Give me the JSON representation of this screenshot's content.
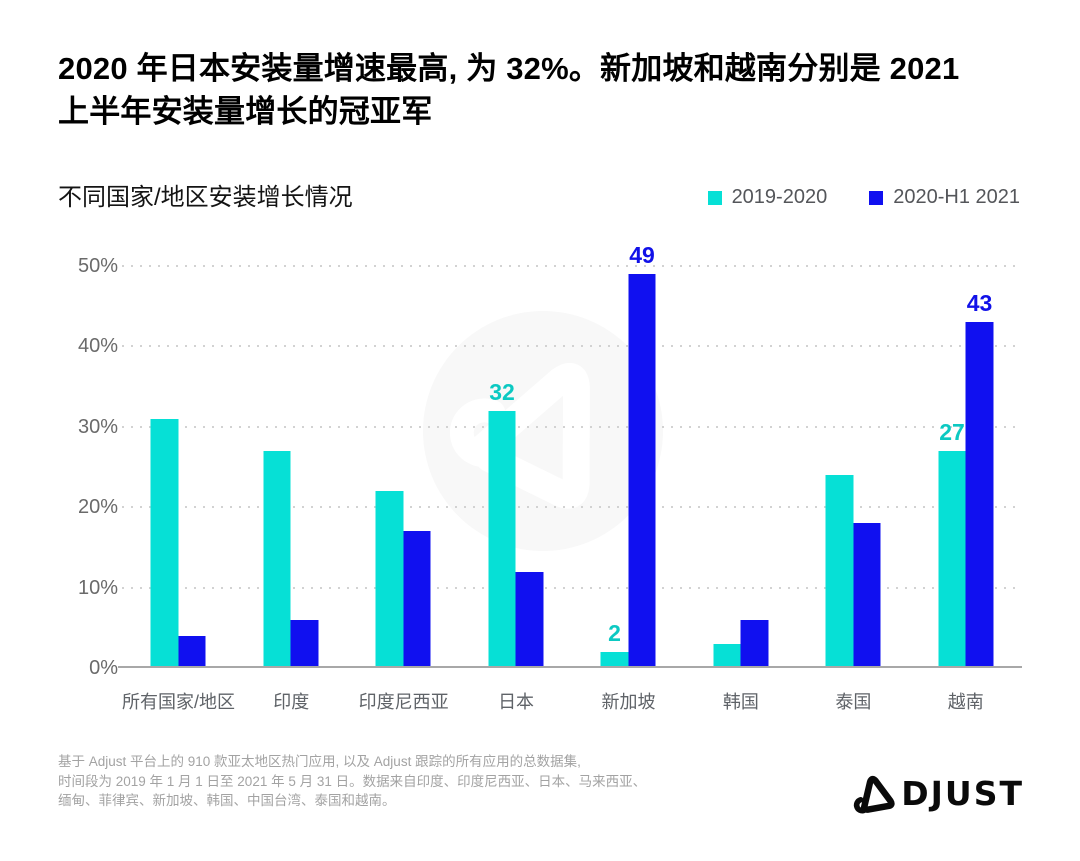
{
  "header": {
    "title_lines": [
      "2020 年日本安装量增速最高, 为 32%。新加坡和越南分别是 2021",
      "上半年安装量增长的冠亚军"
    ]
  },
  "chart": {
    "subtitle": "不同国家/地区安装增长情况",
    "legend": [
      {
        "label": "2019-2020",
        "color": "#06e0d6"
      },
      {
        "label": "2020-H1 2021",
        "color": "#1010f0"
      }
    ]
  },
  "chart_data": {
    "type": "bar",
    "title": "不同国家/地区安装增长情况",
    "categories": [
      "所有国家/地区",
      "印度",
      "印度尼西亚",
      "日本",
      "新加坡",
      "韩国",
      "泰国",
      "越南"
    ],
    "series": [
      {
        "name": "2019-2020",
        "color": "#06e0d6",
        "label_color": "#0cc9c2",
        "values": [
          31,
          27,
          22,
          32,
          2,
          3,
          24,
          27
        ],
        "shown_labels": [
          null,
          null,
          null,
          "32",
          "2",
          null,
          null,
          "27"
        ]
      },
      {
        "name": "2020-H1 2021",
        "color": "#1010f0",
        "label_color": "#1111e8",
        "values": [
          4,
          6,
          17,
          12,
          49,
          6,
          18,
          43
        ],
        "shown_labels": [
          null,
          null,
          null,
          null,
          "49",
          null,
          null,
          "43"
        ]
      }
    ],
    "ylabel": "",
    "ylim": [
      0,
      50
    ],
    "ytick_values": [
      0,
      10,
      20,
      30,
      40,
      50
    ],
    "ytick_labels": [
      "0%",
      "10%",
      "20%",
      "30%",
      "40%",
      "50%"
    ],
    "grid": "horizontal-dotted",
    "legend_position": "top-right",
    "watermark": "adjust-logo-circle"
  },
  "footer": {
    "lines": [
      "基于 Adjust 平台上的 910 款亚太地区热门应用, 以及 Adjust 跟踪的所有应用的总数据集,",
      "时间段为 2019 年 1 月 1 日至 2021 年 5 月 31 日。数据来自印度、印度尼西亚、日本、马来西亚、",
      "缅甸、菲律宾、新加坡、韩国、中国台湾、泰国和越南。"
    ],
    "logo_text": "ADJUST"
  }
}
